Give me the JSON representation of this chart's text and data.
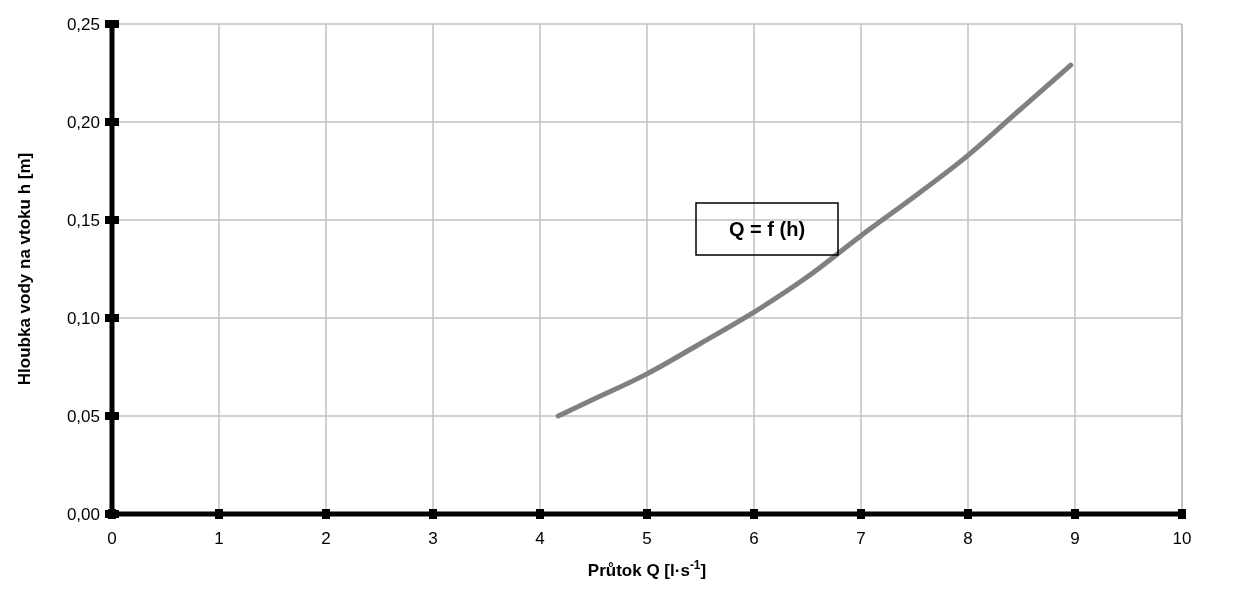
{
  "chart_data": {
    "type": "line",
    "xlabel": "Průtok Q [l·s$^{-1}$]",
    "ylabel": "Hloubka vody na vtoku h [m]",
    "series": [
      {
        "color": "#808080",
        "x": [
          4.17,
          4.5,
          5,
          5.5,
          6,
          6.5,
          7,
          7.5,
          8,
          8.5,
          8.96
        ],
        "values": [
          0.05,
          0.0585,
          0.0715,
          0.087,
          0.103,
          0.121,
          0.142,
          0.162,
          0.183,
          0.207,
          0.229
        ]
      }
    ],
    "xlim": [
      0,
      10
    ],
    "xticks": [
      0,
      1,
      2,
      3,
      4,
      5,
      6,
      7,
      8,
      9,
      10
    ],
    "ylim": [
      0,
      0.25
    ],
    "yticks": [
      {
        "value": 0,
        "label": "0,00"
      },
      {
        "value": 0.05,
        "label": "0,05"
      },
      {
        "value": 0.1,
        "label": "0,10"
      },
      {
        "value": 0.15,
        "label": "0,15"
      },
      {
        "value": 0.2,
        "label": "0,20"
      },
      {
        "value": 0.25,
        "label": "0,25"
      }
    ],
    "grid": true,
    "marker": "none",
    "line_style": "solid",
    "annotations": [
      "Q = f (h)"
    ]
  }
}
